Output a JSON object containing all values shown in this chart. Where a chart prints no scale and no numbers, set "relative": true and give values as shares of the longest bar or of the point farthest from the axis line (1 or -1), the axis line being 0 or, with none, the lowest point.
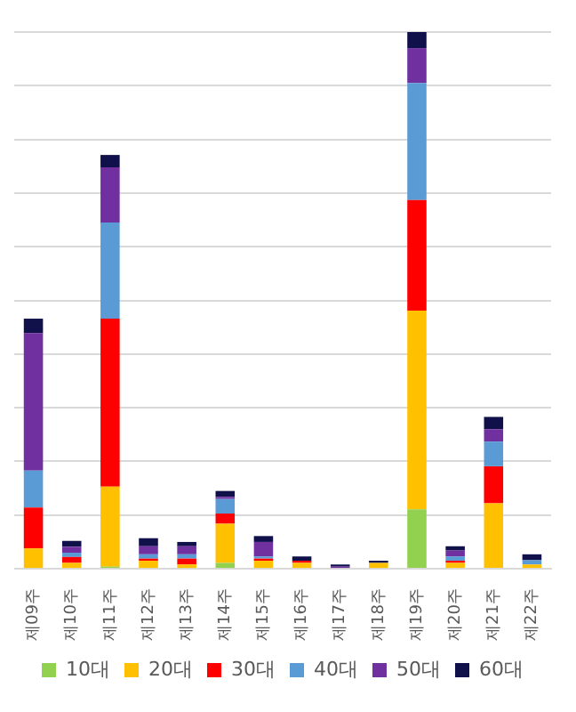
{
  "chart_data": {
    "type": "bar",
    "stacked": true,
    "relative": true,
    "grid": "y",
    "legend": "bottom",
    "categories": [
      "제09주",
      "제10주",
      "제11주",
      "제12주",
      "제13주",
      "제14주",
      "제15주",
      "제16주",
      "제17주",
      "제18주",
      "제19주",
      "제20주",
      "제21주",
      "제22주"
    ],
    "series": [
      {
        "name": "10대",
        "color": "#92d050",
        "values": [
          0,
          0,
          0.004,
          0,
          0,
          0.011,
          0,
          0,
          0,
          0,
          0.111,
          0,
          0,
          0
        ]
      },
      {
        "name": "20대",
        "color": "#ffc000",
        "values": [
          0.038,
          0.011,
          0.149,
          0.015,
          0.008,
          0.073,
          0.015,
          0.011,
          0,
          0.011,
          0.37,
          0.011,
          0.122,
          0.008
        ]
      },
      {
        "name": "30대",
        "color": "#ff0000",
        "values": [
          0.076,
          0.011,
          0.313,
          0.004,
          0.011,
          0.019,
          0.004,
          0.004,
          0,
          0,
          0.206,
          0.004,
          0.069,
          0
        ]
      },
      {
        "name": "40대",
        "color": "#5b9bd5",
        "values": [
          0.069,
          0.008,
          0.179,
          0.008,
          0.008,
          0.027,
          0.004,
          0,
          0,
          0,
          0.218,
          0.008,
          0.046,
          0.008
        ]
      },
      {
        "name": "50대",
        "color": "#7030a0",
        "values": [
          0.256,
          0.011,
          0.103,
          0.015,
          0.015,
          0.004,
          0.027,
          0,
          0.004,
          0,
          0.065,
          0.011,
          0.023,
          0
        ]
      },
      {
        "name": "60대",
        "color": "#10104a",
        "values": [
          0.027,
          0.011,
          0.023,
          0.015,
          0.008,
          0.011,
          0.011,
          0.008,
          0.004,
          0.004,
          0.03,
          0.008,
          0.023,
          0.011
        ]
      }
    ]
  }
}
